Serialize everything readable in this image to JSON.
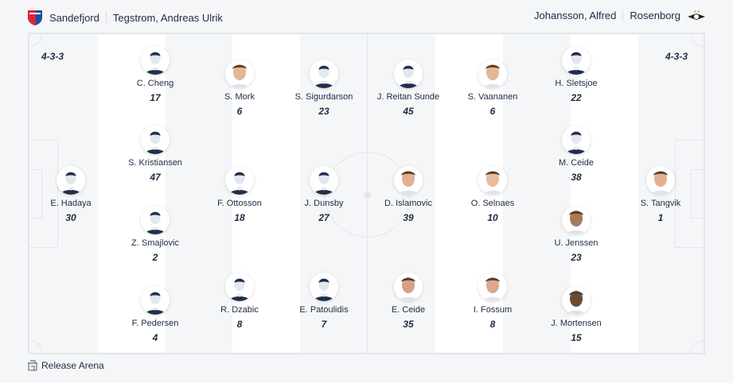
{
  "home": {
    "team": "Sandefjord",
    "coach": "Tegstrom, Andreas Ulrik",
    "formation": "4-3-3",
    "logo_colors": [
      "#d8263a",
      "#1f4ea1"
    ]
  },
  "away": {
    "team": "Rosenborg",
    "coach": "Johansson, Alfred",
    "formation": "4-3-3"
  },
  "venue": {
    "name": "Release Arena",
    "icon": "stadium-icon"
  },
  "players": [
    {
      "name": "E. Hadaya",
      "number": "30",
      "photo": false
    },
    {
      "name": "C. Cheng",
      "number": "17",
      "photo": false
    },
    {
      "name": "S. Kristiansen",
      "number": "47",
      "photo": false
    },
    {
      "name": "Z. Smajlovic",
      "number": "2",
      "photo": false
    },
    {
      "name": "F. Pedersen",
      "number": "4",
      "photo": false
    },
    {
      "name": "S. Mork",
      "number": "6",
      "photo": true
    },
    {
      "name": "F. Ottosson",
      "number": "18",
      "photo": false
    },
    {
      "name": "R. Dzabic",
      "number": "8",
      "photo": false
    },
    {
      "name": "S. Sigurdarson",
      "number": "23",
      "photo": false
    },
    {
      "name": "J. Dunsby",
      "number": "27",
      "photo": false
    },
    {
      "name": "E. Patoulidis",
      "number": "7",
      "photo": false
    },
    {
      "name": "J. Reitan Sunde",
      "number": "45",
      "photo": false
    },
    {
      "name": "D. Islamovic",
      "number": "39",
      "photo": true
    },
    {
      "name": "E. Ceide",
      "number": "35",
      "photo": true
    },
    {
      "name": "S. Vaananen",
      "number": "6",
      "photo": true
    },
    {
      "name": "O. Selnaes",
      "number": "10",
      "photo": true
    },
    {
      "name": "I. Fossum",
      "number": "8",
      "photo": true
    },
    {
      "name": "H. Sletsjoe",
      "number": "22",
      "photo": false
    },
    {
      "name": "M. Ceide",
      "number": "38",
      "photo": false
    },
    {
      "name": "U. Jenssen",
      "number": "23",
      "photo": true
    },
    {
      "name": "J. Mortensen",
      "number": "15",
      "photo": true
    },
    {
      "name": "S. Tangvik",
      "number": "1",
      "photo": true
    }
  ]
}
